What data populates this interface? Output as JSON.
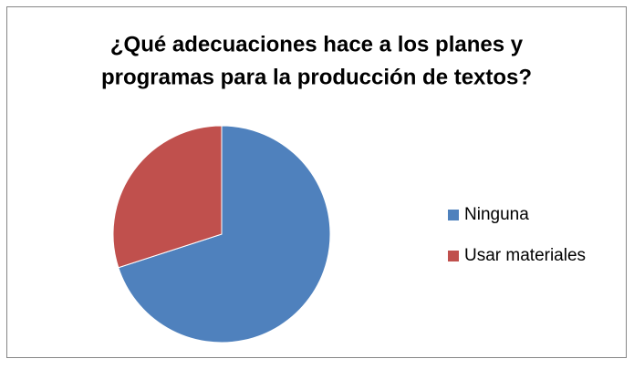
{
  "chart_data": {
    "type": "pie",
    "title": [
      "¿Qué adecuaciones hace a los planes y",
      "programas para la producción de textos?"
    ],
    "categories": [
      "Ninguna",
      "Usar materiales"
    ],
    "values": [
      70,
      30
    ],
    "colors": [
      "#4f81bd",
      "#c0504d"
    ],
    "legend": "right"
  }
}
